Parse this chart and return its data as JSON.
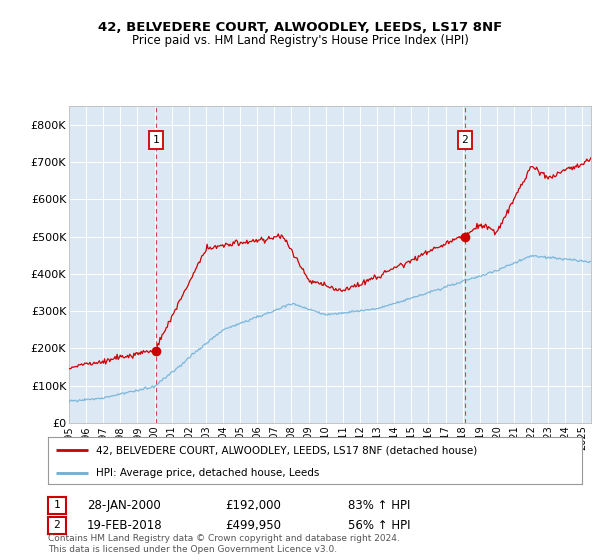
{
  "title1": "42, BELVEDERE COURT, ALWOODLEY, LEEDS, LS17 8NF",
  "title2": "Price paid vs. HM Land Registry's House Price Index (HPI)",
  "fig_bg_color": "#ffffff",
  "plot_bg_color": "#dce9f5",
  "red_line_label": "42, BELVEDERE COURT, ALWOODLEY, LEEDS, LS17 8NF (detached house)",
  "blue_line_label": "HPI: Average price, detached house, Leeds",
  "annotation1_date": "28-JAN-2000",
  "annotation1_price": "£192,000",
  "annotation1_pct": "83% ↑ HPI",
  "annotation2_date": "19-FEB-2018",
  "annotation2_price": "£499,950",
  "annotation2_pct": "56% ↑ HPI",
  "footer": "Contains HM Land Registry data © Crown copyright and database right 2024.\nThis data is licensed under the Open Government Licence v3.0.",
  "ylim": [
    0,
    850000
  ],
  "yticks": [
    0,
    100000,
    200000,
    300000,
    400000,
    500000,
    600000,
    700000,
    800000
  ],
  "ytick_labels": [
    "£0",
    "£100K",
    "£200K",
    "£300K",
    "£400K",
    "£500K",
    "£600K",
    "£700K",
    "£800K"
  ],
  "xmin": 1995.0,
  "xmax": 2025.5,
  "marker1_x": 2000.07,
  "marker1_y": 192000,
  "marker2_x": 2018.13,
  "marker2_y": 499950,
  "vline1_x": 2000.07,
  "vline2_x": 2018.13,
  "red_color": "#cc0000",
  "blue_color": "#6baed6"
}
